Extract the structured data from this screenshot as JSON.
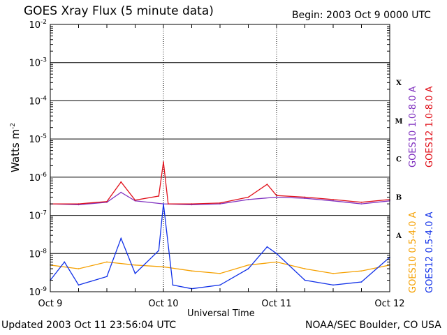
{
  "header": {
    "title": "GOES Xray Flux (5 minute data)",
    "begin": "Begin:  2003 Oct 9 0000 UTC"
  },
  "footer": {
    "updated": "Updated 2003 Oct 11 23:56:04 UTC",
    "credit": "NOAA/SEC Boulder, CO USA"
  },
  "colors": {
    "goes10_long": "#7f2fbf",
    "goes12_long": "#e0101a",
    "goes10_short": "#f5a000",
    "goes12_short": "#1030e8",
    "grid": "#000000"
  },
  "chart_data": {
    "type": "line",
    "title": "GOES Xray Flux (5 minute data)",
    "xlabel": "Universal Time",
    "ylabel": "Watts m",
    "ylabel_sup": "-2",
    "yscale": "log",
    "ylim": [
      1e-09,
      0.01
    ],
    "xlim": [
      "2003-10-09 00:00",
      "2003-10-12 00:00"
    ],
    "x_ticks": [
      "Oct 9",
      "Oct 10",
      "Oct 11",
      "Oct 12"
    ],
    "y_ticks": [
      {
        "base": "10",
        "exp": "-2"
      },
      {
        "base": "10",
        "exp": "-3"
      },
      {
        "base": "10",
        "exp": "-4"
      },
      {
        "base": "10",
        "exp": "-5"
      },
      {
        "base": "10",
        "exp": "-6"
      },
      {
        "base": "10",
        "exp": "-7"
      },
      {
        "base": "10",
        "exp": "-8"
      },
      {
        "base": "10",
        "exp": "-9"
      }
    ],
    "flare_classes": [
      "X",
      "M",
      "C",
      "B",
      "A"
    ],
    "grid": true,
    "series": [
      {
        "name": "GOES10 1.0-8.0 A",
        "x": [
          "2003-10-09 00:00",
          "2003-10-09 06:00",
          "2003-10-09 12:00",
          "2003-10-09 15:00",
          "2003-10-09 18:00",
          "2003-10-10 00:00",
          "2003-10-10 06:00",
          "2003-10-10 12:00",
          "2003-10-10 18:00",
          "2003-10-11 00:00",
          "2003-10-11 06:00",
          "2003-10-11 12:00",
          "2003-10-11 18:00",
          "2003-10-12 00:00"
        ],
        "values": [
          2e-07,
          1.9e-07,
          2.2e-07,
          4e-07,
          2.4e-07,
          2e-07,
          1.9e-07,
          2e-07,
          2.6e-07,
          3e-07,
          2.8e-07,
          2.4e-07,
          2e-07,
          2.4e-07
        ]
      },
      {
        "name": "GOES12 1.0-8.0 A",
        "x": [
          "2003-10-09 00:00",
          "2003-10-09 06:00",
          "2003-10-09 12:00",
          "2003-10-09 15:00",
          "2003-10-09 18:00",
          "2003-10-09 23:00",
          "2003-10-10 00:00",
          "2003-10-10 01:00",
          "2003-10-10 06:00",
          "2003-10-10 12:00",
          "2003-10-10 18:00",
          "2003-10-10 22:00",
          "2003-10-11 00:00",
          "2003-10-11 06:00",
          "2003-10-11 12:00",
          "2003-10-11 18:00",
          "2003-10-12 00:00"
        ],
        "values": [
          2e-07,
          2e-07,
          2.3e-07,
          7.5e-07,
          2.5e-07,
          3.2e-07,
          2.5e-06,
          2e-07,
          2e-07,
          2.1e-07,
          3e-07,
          6.5e-07,
          3.3e-07,
          3e-07,
          2.6e-07,
          2.2e-07,
          2.6e-07
        ]
      },
      {
        "name": "GOES10 0.5-4.0 A",
        "x": [
          "2003-10-09 00:00",
          "2003-10-09 06:00",
          "2003-10-09 12:00",
          "2003-10-09 18:00",
          "2003-10-10 00:00",
          "2003-10-10 06:00",
          "2003-10-10 12:00",
          "2003-10-10 18:00",
          "2003-10-11 00:00",
          "2003-10-11 06:00",
          "2003-10-11 12:00",
          "2003-10-11 18:00",
          "2003-10-12 00:00"
        ],
        "values": [
          5e-09,
          4e-09,
          6e-09,
          5e-09,
          4.5e-09,
          3.5e-09,
          3e-09,
          5e-09,
          6e-09,
          4e-09,
          3e-09,
          3.5e-09,
          5e-09
        ]
      },
      {
        "name": "GOES12 0.5-4.0 A",
        "x": [
          "2003-10-09 00:00",
          "2003-10-09 03:00",
          "2003-10-09 06:00",
          "2003-10-09 12:00",
          "2003-10-09 15:00",
          "2003-10-09 18:00",
          "2003-10-09 23:00",
          "2003-10-10 00:00",
          "2003-10-10 02:00",
          "2003-10-10 06:00",
          "2003-10-10 12:00",
          "2003-10-10 18:00",
          "2003-10-10 22:00",
          "2003-10-11 00:00",
          "2003-10-11 06:00",
          "2003-10-11 12:00",
          "2003-10-11 18:00",
          "2003-10-12 00:00"
        ],
        "values": [
          2e-09,
          6e-09,
          1.5e-09,
          2.5e-09,
          2.5e-08,
          3e-09,
          1.2e-08,
          2e-07,
          1.5e-09,
          1.2e-09,
          1.5e-09,
          4e-09,
          1.5e-08,
          1e-08,
          2e-09,
          1.5e-09,
          1.8e-09,
          8e-09
        ]
      }
    ]
  }
}
